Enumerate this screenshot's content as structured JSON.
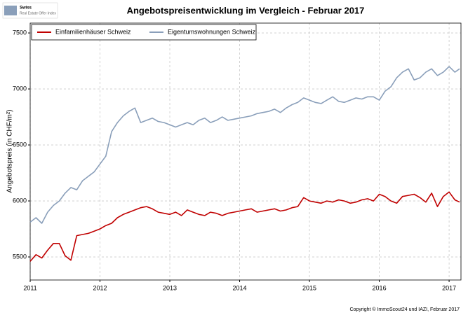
{
  "chart_data": {
    "type": "line",
    "title": "Angebotspreisentwicklung im Vergleich - Februar 2017",
    "ylabel": "Angebotspreis (in CHF/m²)",
    "logo": [
      "Swiss",
      "Real Estate Offer Index"
    ],
    "footnote": "Copyright © ImmoScout24 und IAZI, Februar 2017",
    "legend": "upper left",
    "grid": true,
    "xlim": [
      2011,
      2017.17
    ],
    "xticks": [
      2011,
      2012,
      2013,
      2014,
      2015,
      2016,
      2017
    ],
    "ylim": [
      5294,
      7588
    ],
    "yticks": [
      5500,
      6000,
      6500,
      7000,
      7500
    ],
    "x": [
      2011,
      2011.083,
      2011.167,
      2011.25,
      2011.333,
      2011.417,
      2011.5,
      2011.583,
      2011.667,
      2011.75,
      2011.833,
      2011.917,
      2012,
      2012.083,
      2012.167,
      2012.25,
      2012.333,
      2012.417,
      2012.5,
      2012.583,
      2012.667,
      2012.75,
      2012.833,
      2012.917,
      2013,
      2013.083,
      2013.167,
      2013.25,
      2013.333,
      2013.417,
      2013.5,
      2013.583,
      2013.667,
      2013.75,
      2013.833,
      2013.917,
      2014,
      2014.083,
      2014.167,
      2014.25,
      2014.333,
      2014.417,
      2014.5,
      2014.583,
      2014.667,
      2014.75,
      2014.833,
      2014.917,
      2015,
      2015.083,
      2015.167,
      2015.25,
      2015.333,
      2015.417,
      2015.5,
      2015.583,
      2015.667,
      2015.75,
      2015.833,
      2015.917,
      2016,
      2016.083,
      2016.167,
      2016.25,
      2016.333,
      2016.417,
      2016.5,
      2016.583,
      2016.667,
      2016.75,
      2016.833,
      2016.917,
      2017,
      2017.083,
      2017.15
    ],
    "series": [
      {
        "name": "Einfamilienhäuser Schweiz",
        "color": "#c00000",
        "values": [
          5460,
          5520,
          5490,
          5560,
          5620,
          5620,
          5510,
          5470,
          5690,
          5700,
          5710,
          5730,
          5750,
          5780,
          5800,
          5850,
          5880,
          5900,
          5920,
          5940,
          5950,
          5930,
          5900,
          5890,
          5880,
          5900,
          5870,
          5920,
          5900,
          5880,
          5870,
          5900,
          5890,
          5870,
          5890,
          5900,
          5910,
          5920,
          5930,
          5900,
          5910,
          5920,
          5930,
          5910,
          5920,
          5940,
          5950,
          6030,
          6000,
          5990,
          5980,
          6000,
          5990,
          6010,
          6000,
          5980,
          5990,
          6010,
          6020,
          6000,
          6060,
          6040,
          6000,
          5980,
          6040,
          6050,
          6060,
          6030,
          5990,
          6070,
          5950,
          6040,
          6080,
          6010,
          5990
        ]
      },
      {
        "name": "Eigentumswohnungen Schweiz",
        "color": "#8a9fba",
        "values": [
          5810,
          5850,
          5800,
          5900,
          5960,
          6000,
          6070,
          6120,
          6100,
          6180,
          6220,
          6260,
          6330,
          6400,
          6620,
          6700,
          6760,
          6800,
          6830,
          6700,
          6720,
          6740,
          6710,
          6700,
          6680,
          6660,
          6680,
          6700,
          6680,
          6720,
          6740,
          6700,
          6720,
          6750,
          6720,
          6730,
          6740,
          6750,
          6760,
          6780,
          6790,
          6800,
          6820,
          6790,
          6830,
          6860,
          6880,
          6920,
          6900,
          6880,
          6870,
          6900,
          6930,
          6890,
          6880,
          6900,
          6920,
          6910,
          6930,
          6930,
          6900,
          6980,
          7020,
          7100,
          7150,
          7180,
          7080,
          7100,
          7150,
          7180,
          7120,
          7150,
          7200,
          7150,
          7180
        ]
      }
    ]
  }
}
